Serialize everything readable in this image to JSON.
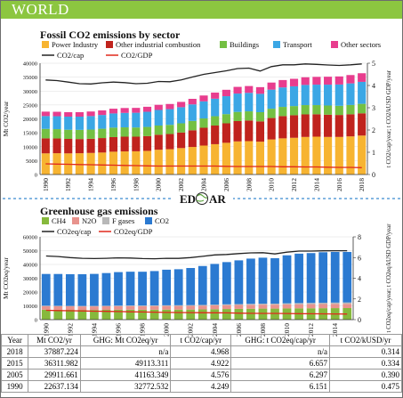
{
  "banner": {
    "title": "WORLD"
  },
  "logo": {
    "text": "EDGAR"
  },
  "colors": {
    "power": "#f7b431",
    "industry": "#c0231d",
    "buildings": "#74c043",
    "transport": "#3ba7e5",
    "other": "#e83d8e",
    "ch4": "#86b93c",
    "n2o": "#e8938d",
    "fgas": "#b8b8b8",
    "co2": "#2b7ad1",
    "cap_line": "#222222",
    "gdp_line": "#e0281b"
  },
  "chart_data": [
    {
      "type": "bar",
      "stacked": true,
      "title": "Fossil CO2 emissions by sector",
      "ylabel": "Mt CO2/year",
      "y2label": "t CO2/cap/year; t CO2/kUSD GDP/year",
      "ylim": [
        0,
        40000
      ],
      "yticks": [
        "0",
        "5000",
        "10000",
        "15000",
        "20000",
        "25000",
        "30000",
        "35000",
        "40000"
      ],
      "y2lim": [
        0,
        5
      ],
      "y2ticks": [
        "0",
        "1",
        "2",
        "3",
        "4",
        "5"
      ],
      "x": [
        1990,
        1991,
        1992,
        1993,
        1994,
        1995,
        1996,
        1997,
        1998,
        1999,
        2000,
        2001,
        2002,
        2003,
        2004,
        2005,
        2006,
        2007,
        2008,
        2009,
        2010,
        2011,
        2012,
        2013,
        2014,
        2015,
        2016,
        2017,
        2018
      ],
      "xtick_labels": [
        "1990",
        "1992",
        "1994",
        "1996",
        "1998",
        "2000",
        "2002",
        "2004",
        "2006",
        "2008",
        "2010",
        "2012",
        "2014",
        "2016",
        "2018"
      ],
      "legend": [
        "Power Industry",
        "Other industrial combustion",
        "Buildings",
        "Transport",
        "Other sectors"
      ],
      "line_legend": [
        "CO2/cap",
        "CO2/GDP"
      ],
      "series": [
        {
          "name": "Power Industry",
          "values": [
            7600,
            7650,
            7600,
            7650,
            7750,
            7900,
            8200,
            8300,
            8350,
            8500,
            8900,
            9100,
            9500,
            9900,
            10400,
            10900,
            11400,
            11900,
            12000,
            11800,
            12600,
            13000,
            13200,
            13500,
            13600,
            13500,
            13500,
            13700,
            14000
          ]
        },
        {
          "name": "Other industrial combustion",
          "values": [
            5400,
            5300,
            5200,
            5100,
            5100,
            5200,
            5250,
            5300,
            5250,
            5300,
            5400,
            5450,
            5600,
            6000,
            6400,
            6700,
            7000,
            7300,
            7400,
            7300,
            7700,
            8000,
            8100,
            8100,
            8050,
            8000,
            7900,
            7950,
            8000
          ]
        },
        {
          "name": "Buildings",
          "values": [
            3400,
            3350,
            3300,
            3300,
            3300,
            3350,
            3400,
            3350,
            3300,
            3300,
            3300,
            3300,
            3300,
            3350,
            3350,
            3350,
            3300,
            3300,
            3300,
            3300,
            3350,
            3300,
            3300,
            3350,
            3300,
            3300,
            3300,
            3350,
            3400
          ]
        },
        {
          "name": "Transport",
          "values": [
            4600,
            4650,
            4700,
            4750,
            4850,
            4950,
            5100,
            5200,
            5300,
            5450,
            5600,
            5650,
            5800,
            5950,
            6150,
            6300,
            6450,
            6600,
            6650,
            6600,
            6850,
            7000,
            7100,
            7250,
            7350,
            7500,
            7650,
            7750,
            7900
          ]
        },
        {
          "name": "Other sectors",
          "values": [
            1600,
            1600,
            1600,
            1600,
            1650,
            1650,
            1700,
            1750,
            1750,
            1800,
            1850,
            1850,
            1900,
            2000,
            2100,
            2200,
            2300,
            2400,
            2450,
            2400,
            2550,
            2650,
            2700,
            2750,
            2800,
            2850,
            2900,
            3000,
            3100
          ]
        }
      ],
      "lines": [
        {
          "name": "CO2/cap",
          "axis": "right",
          "values": [
            4.25,
            4.22,
            4.15,
            4.08,
            4.07,
            4.12,
            4.15,
            4.13,
            4.08,
            4.1,
            4.18,
            4.17,
            4.25,
            4.38,
            4.5,
            4.58,
            4.66,
            4.76,
            4.78,
            4.65,
            4.85,
            4.93,
            4.93,
            4.97,
            4.95,
            4.92,
            4.9,
            4.93,
            4.97
          ]
        },
        {
          "name": "CO2/GDP",
          "axis": "right",
          "values": [
            0.48,
            0.47,
            0.46,
            0.45,
            0.44,
            0.43,
            0.42,
            0.41,
            0.4,
            0.39,
            0.38,
            0.38,
            0.38,
            0.38,
            0.38,
            0.38,
            0.37,
            0.36,
            0.36,
            0.36,
            0.36,
            0.35,
            0.35,
            0.34,
            0.34,
            0.33,
            0.32,
            0.32,
            0.31
          ]
        }
      ]
    },
    {
      "type": "bar",
      "stacked": true,
      "title": "Greenhouse gas emissions",
      "ylabel": "Mt CO2eq/year",
      "y2label": "t CO2eq/cap/year; t CO2eq/kUSD GDP/year",
      "ylim": [
        0,
        60000
      ],
      "yticks": [
        "0",
        "10000",
        "20000",
        "30000",
        "40000",
        "50000",
        "60000"
      ],
      "y2lim": [
        0,
        8
      ],
      "y2ticks": [
        "0",
        "2",
        "4",
        "6",
        "8"
      ],
      "x": [
        1990,
        1991,
        1992,
        1993,
        1994,
        1995,
        1996,
        1997,
        1998,
        1999,
        2000,
        2001,
        2002,
        2003,
        2004,
        2005,
        2006,
        2007,
        2008,
        2009,
        2010,
        2011,
        2012,
        2013,
        2014,
        2015
      ],
      "xtick_labels": [
        "1990",
        "1992",
        "1994",
        "1996",
        "1998",
        "2000",
        "2002",
        "2004",
        "2006",
        "2008",
        "2010",
        "2012",
        "2014"
      ],
      "legend": [
        "CH4",
        "N2O",
        "F gases",
        "CO2"
      ],
      "line_legend": [
        "CO2eq/cap",
        "CO2eq/GDP"
      ],
      "series": [
        {
          "name": "CH4",
          "values": [
            7200,
            7150,
            7100,
            7050,
            7050,
            7100,
            7150,
            7200,
            7150,
            7200,
            7250,
            7250,
            7300,
            7400,
            7550,
            7700,
            7800,
            7900,
            8000,
            8000,
            8100,
            8200,
            8250,
            8300,
            8350,
            8400
          ]
        },
        {
          "name": "N2O",
          "values": [
            2600,
            2580,
            2560,
            2550,
            2560,
            2600,
            2620,
            2640,
            2650,
            2660,
            2680,
            2700,
            2720,
            2740,
            2770,
            2800,
            2830,
            2860,
            2880,
            2880,
            2920,
            2960,
            2980,
            3000,
            3020,
            3050
          ]
        },
        {
          "name": "F gases",
          "values": [
            300,
            310,
            320,
            330,
            340,
            360,
            380,
            400,
            420,
            440,
            460,
            480,
            500,
            530,
            560,
            600,
            640,
            680,
            720,
            740,
            800,
            860,
            900,
            940,
            980,
            1000
          ]
        },
        {
          "name": "CO2",
          "values": [
            23000,
            23050,
            22950,
            23000,
            23200,
            23700,
            24300,
            24500,
            24500,
            24900,
            25800,
            26100,
            26900,
            28200,
            29500,
            30600,
            31700,
            32800,
            33300,
            32900,
            34800,
            35800,
            36100,
            36600,
            36700,
            36600
          ]
        }
      ],
      "lines": [
        {
          "name": "CO2eq/cap",
          "axis": "right",
          "values": [
            6.15,
            6.1,
            6.0,
            5.93,
            5.9,
            5.93,
            5.97,
            5.95,
            5.9,
            5.88,
            5.93,
            5.92,
            6.0,
            6.12,
            6.25,
            6.3,
            6.38,
            6.45,
            6.47,
            6.35,
            6.52,
            6.62,
            6.62,
            6.65,
            6.66,
            6.66
          ]
        },
        {
          "name": "CO2eq/GDP",
          "axis": "right",
          "values": [
            0.9,
            0.88,
            0.86,
            0.84,
            0.82,
            0.8,
            0.78,
            0.76,
            0.74,
            0.72,
            0.7,
            0.69,
            0.68,
            0.67,
            0.66,
            0.65,
            0.63,
            0.61,
            0.6,
            0.6,
            0.59,
            0.58,
            0.57,
            0.56,
            0.55,
            0.54
          ]
        }
      ]
    },
    {
      "type": "table",
      "columns": [
        "Year",
        "Mt CO2/yr",
        "GHG: Mt CO2eq/yr",
        "t CO2/cap/yr",
        "GHG: t CO2eq/cap/yr",
        "t CO2/kUSD/yr"
      ],
      "rows": [
        [
          "2018",
          "37887.224",
          "n/a",
          "4.968",
          "n/a",
          "0.314"
        ],
        [
          "2015",
          "36311.982",
          "49113.311",
          "4.922",
          "6.657",
          "0.334"
        ],
        [
          "2005",
          "29911.661",
          "41163.349",
          "4.576",
          "6.297",
          "0.390"
        ],
        [
          "1990",
          "22637.134",
          "32772.532",
          "4.249",
          "6.151",
          "0.475"
        ]
      ]
    }
  ]
}
